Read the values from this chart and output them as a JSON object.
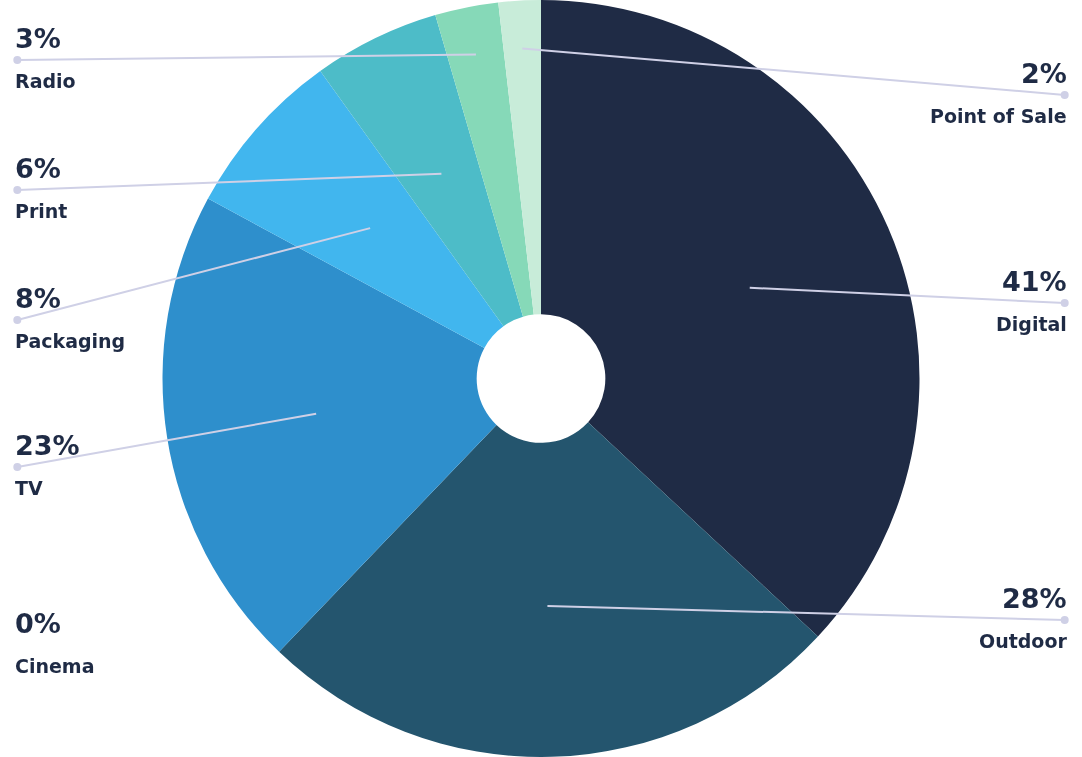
{
  "chart_data": {
    "type": "donut",
    "categories": [
      "Digital",
      "Outdoor",
      "Cinema",
      "TV",
      "Packaging",
      "Print",
      "Radio",
      "Point of Sale"
    ],
    "values": [
      41,
      28,
      0,
      23,
      8,
      6,
      3,
      2
    ],
    "value_labels": [
      "41%",
      "28%",
      "0%",
      "23%",
      "8%",
      "6%",
      "3%",
      "2%"
    ],
    "colors": [
      "#1f2b45",
      "#24556e",
      "#2a6f95",
      "#2e8fcc",
      "#41b6ee",
      "#4dbcc8",
      "#86d9b8",
      "#c8ecd9"
    ],
    "legend": false
  }
}
